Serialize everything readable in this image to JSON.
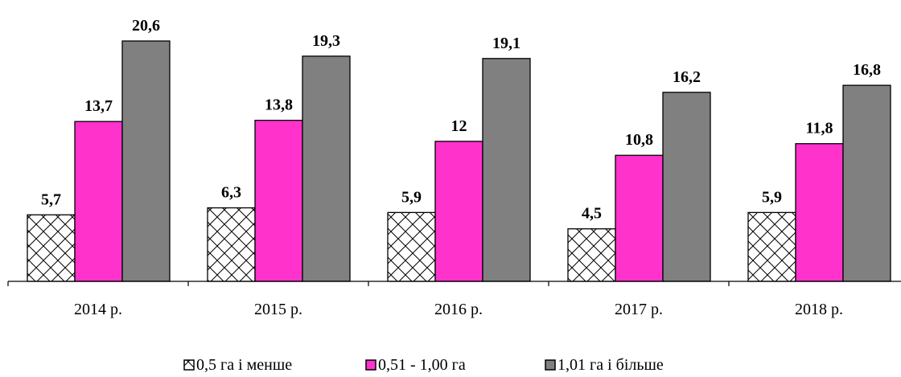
{
  "chart_data": {
    "type": "bar",
    "title": "",
    "xlabel": "",
    "ylabel": "",
    "ylim": [
      0,
      20.6
    ],
    "grid": false,
    "legend_position": "bottom",
    "categories": [
      "2014 р.",
      "2015 р.",
      "2016 р.",
      "2017 р.",
      "2018 р."
    ],
    "series": [
      {
        "name": "0,5 га і менше",
        "values": [
          5.7,
          6.3,
          5.9,
          4.5,
          5.9
        ],
        "labels": [
          "5,7",
          "6,3",
          "5,9",
          "4,5",
          "5,9"
        ],
        "fill": "hatch"
      },
      {
        "name": "0,51 - 1,00 га",
        "values": [
          13.7,
          13.8,
          12,
          10.8,
          11.8
        ],
        "labels": [
          "13,7",
          "13,8",
          "12",
          "10,8",
          "11,8"
        ],
        "fill": "#ff33cc"
      },
      {
        "name": "1,01 га і більше",
        "values": [
          20.6,
          19.3,
          19.1,
          16.2,
          16.8
        ],
        "labels": [
          "20,6",
          "19,3",
          "19,1",
          "16,2",
          "16,8"
        ],
        "fill": "#808080"
      }
    ]
  }
}
